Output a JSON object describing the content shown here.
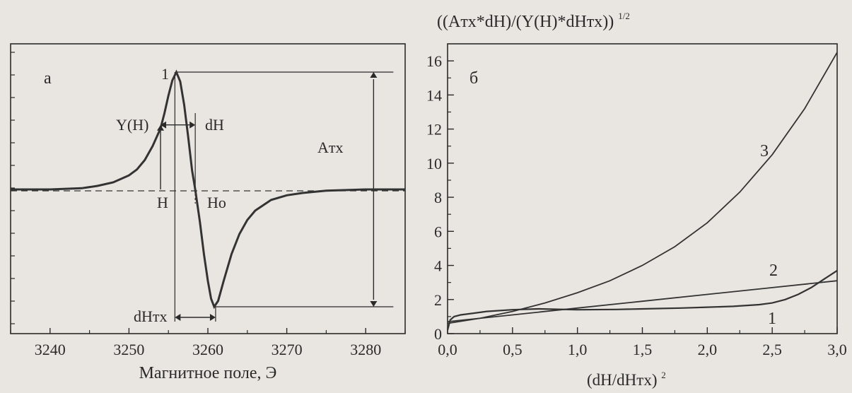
{
  "chart_data": [
    {
      "type": "line",
      "panel_label": "а",
      "xlabel": "Магнитное поле, Э",
      "ylabel": "",
      "xlim": [
        3235,
        3285
      ],
      "ylim": [
        -1,
        1
      ],
      "x_ticks": [
        3240,
        3250,
        3260,
        3270,
        3280
      ],
      "x_tick_labels": [
        "3240",
        "3250",
        "3260",
        "3270",
        "3280"
      ],
      "grid": false,
      "baseline_dashed": true,
      "annotations": {
        "peak_number": "1",
        "y_of_h": "Y(H)",
        "dh": "dH",
        "atx": "Aтх",
        "h": "H",
        "ho": "Ho",
        "dhtx": "dHтх"
      },
      "markers": {
        "peak_max_x": 3256.0,
        "peak_min_x": 3260.8,
        "center_x": 3258.4,
        "h_x": 3254.0,
        "dh_end_x": 3258.4
      },
      "series": [
        {
          "x": [
            3235,
            3240,
            3244,
            3246,
            3248,
            3250,
            3251,
            3252,
            3253,
            3254,
            3254.5,
            3255,
            3255.5,
            3256,
            3256.5,
            3257,
            3257.5,
            3258,
            3258.4,
            3259,
            3259.5,
            3260,
            3260.4,
            3260.8,
            3261.3,
            3262,
            3263,
            3264,
            3265,
            3266,
            3268,
            3270,
            3272,
            3275,
            3280,
            3285
          ],
          "y": [
            0.0,
            0.0,
            0.01,
            0.03,
            0.06,
            0.12,
            0.17,
            0.25,
            0.37,
            0.52,
            0.65,
            0.8,
            0.93,
            1.0,
            0.92,
            0.72,
            0.45,
            0.16,
            0.0,
            -0.28,
            -0.55,
            -0.78,
            -0.93,
            -1.0,
            -0.95,
            -0.78,
            -0.55,
            -0.38,
            -0.26,
            -0.18,
            -0.09,
            -0.05,
            -0.03,
            -0.01,
            0.0,
            0.0
          ]
        }
      ]
    },
    {
      "type": "line",
      "panel_label": "б",
      "title": "((Aтх*dH)/(Y(H)*dHтх))",
      "title_superscript": "1/2",
      "xlabel": "(dH/dHтх)",
      "xlabel_superscript": "2",
      "ylabel": "",
      "xlim": [
        0,
        3
      ],
      "ylim": [
        0,
        17
      ],
      "x_ticks": [
        0,
        0.5,
        1,
        1.5,
        2,
        2.5,
        3
      ],
      "x_tick_labels": [
        "0,0",
        "0,5",
        "1,0",
        "1,5",
        "2,0",
        "2,5",
        "3,0"
      ],
      "y_ticks": [
        0,
        2,
        4,
        6,
        8,
        10,
        12,
        14,
        16
      ],
      "y_tick_labels": [
        "0",
        "2",
        "4",
        "6",
        "8",
        "10",
        "12",
        "14",
        "16"
      ],
      "grid": false,
      "series": [
        {
          "name": "1",
          "x": [
            0.0,
            0.02,
            0.05,
            0.1,
            0.2,
            0.3,
            0.5,
            0.7,
            1.0,
            1.3,
            1.5,
            1.8,
            2.0,
            2.2,
            2.4,
            2.5,
            2.6,
            2.7,
            2.8,
            2.9,
            3.0
          ],
          "y": [
            0.2,
            0.8,
            1.0,
            1.1,
            1.2,
            1.3,
            1.4,
            1.45,
            1.4,
            1.42,
            1.45,
            1.5,
            1.55,
            1.6,
            1.7,
            1.8,
            2.0,
            2.3,
            2.7,
            3.2,
            3.7
          ]
        },
        {
          "name": "2",
          "x": [
            0.0,
            0.5,
            1.0,
            1.5,
            2.0,
            2.5,
            3.0
          ],
          "y": [
            0.7,
            1.1,
            1.5,
            1.9,
            2.3,
            2.7,
            3.1
          ]
        },
        {
          "name": "3",
          "x": [
            0.0,
            0.25,
            0.5,
            0.75,
            1.0,
            1.25,
            1.5,
            1.75,
            2.0,
            2.25,
            2.5,
            2.75,
            3.0
          ],
          "y": [
            0.6,
            0.9,
            1.3,
            1.8,
            2.4,
            3.1,
            4.0,
            5.1,
            6.5,
            8.3,
            10.5,
            13.2,
            16.5
          ]
        }
      ]
    }
  ]
}
